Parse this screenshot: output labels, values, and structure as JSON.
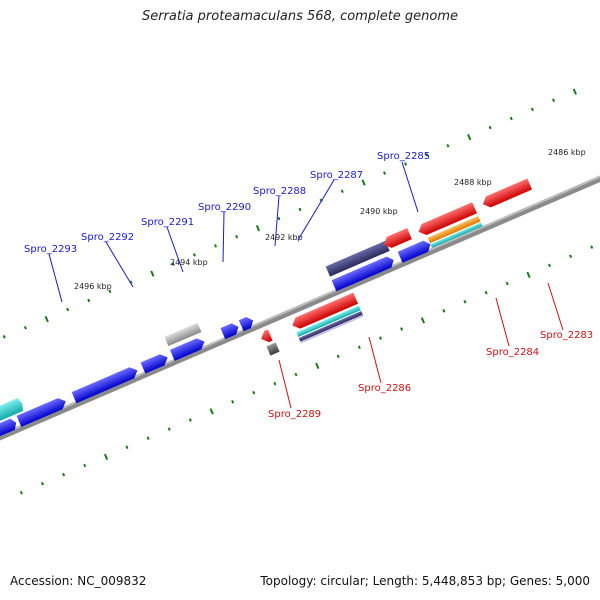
{
  "header": {
    "title": "Serratia proteamaculans 568, complete genome"
  },
  "footer": {
    "accession": "Accession: NC_009832",
    "summary": "Topology: circular; Length: 5,448,853 bp; Genes: 5,000"
  },
  "scale_labels": {
    "k2486": "2486 kbp",
    "k2488": "2488 kbp",
    "k2490": "2490 kbp",
    "k2492": "2492 kbp",
    "k2494": "2494 kbp",
    "k2496": "2496 kbp"
  },
  "genes": {
    "spro_2283": "Spro_2283",
    "spro_2284": "Spro_2284",
    "spro_2285": "Spro_2285",
    "spro_2286": "Spro_2286",
    "spro_2287": "Spro_2287",
    "spro_2288": "Spro_2288",
    "spro_2289": "Spro_2289",
    "spro_2290": "Spro_2290",
    "spro_2291": "Spro_2291",
    "spro_2292": "Spro_2292",
    "spro_2293": "Spro_2293"
  },
  "colors": {
    "forward_label": "#1a1acc",
    "reverse_label": "#cc1111",
    "blue": "#1111ee",
    "red": "#ee1111",
    "cyan": "#22cccc",
    "dark_purple": "#3a3a7a",
    "gray": "#999999",
    "dark_gray": "#555555",
    "orange": "#ee8811",
    "backbone": "#888888",
    "tick": "#1a7a1a"
  }
}
